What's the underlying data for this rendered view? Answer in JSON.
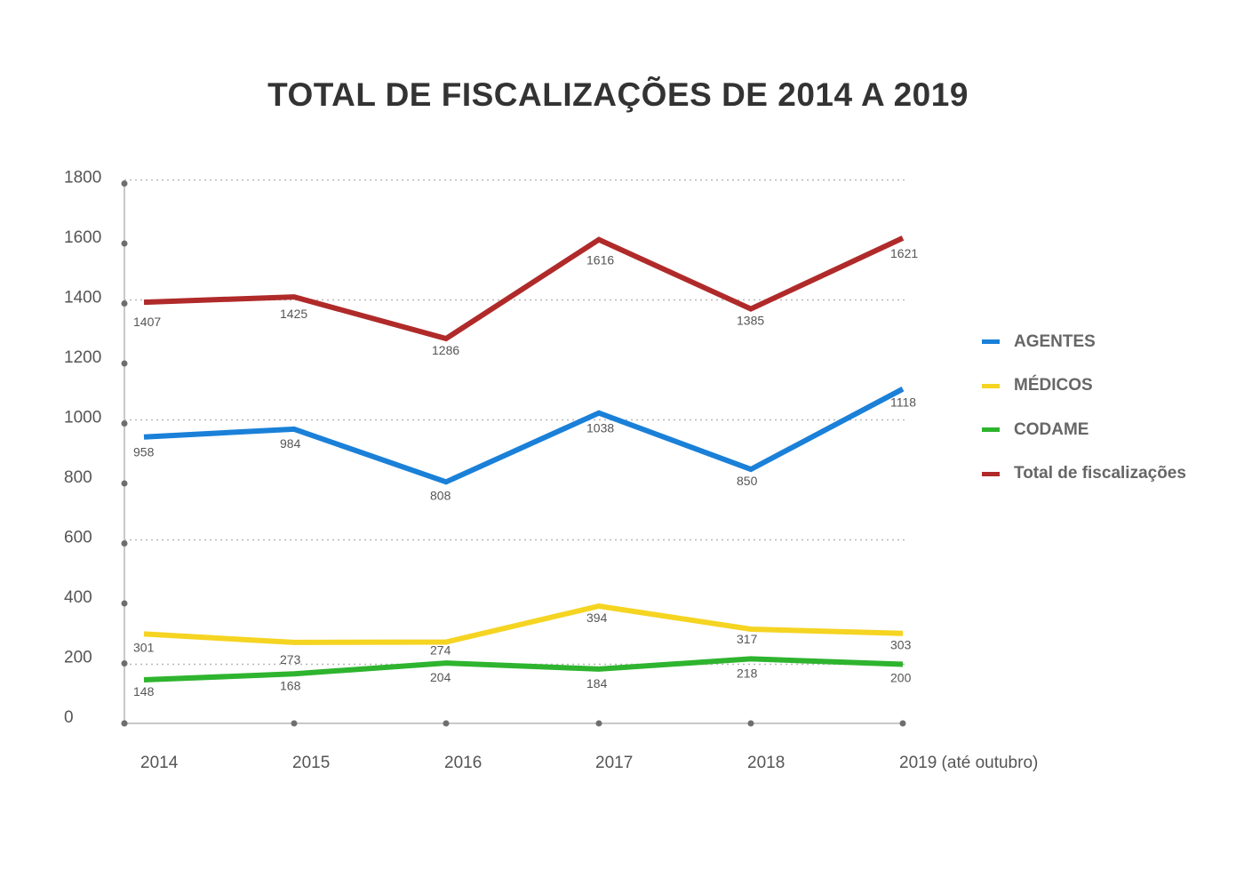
{
  "chart_data": {
    "type": "line",
    "title": "TOTAL DE FISCALIZAÇÕES DE 2014 A 2019",
    "categories": [
      "2014",
      "2015",
      "2016",
      "2017",
      "2018",
      "2019 (até outubro)"
    ],
    "ylim": [
      0,
      1800
    ],
    "yticks": [
      "0",
      "200",
      "400",
      "600",
      "800",
      "1000",
      "1200",
      "1400",
      "1600",
      "1800"
    ],
    "grid": "dotted horizontal",
    "legend_position": "right",
    "series": [
      {
        "name": "AGENTES",
        "color": "#1a80d8",
        "values": [
          958,
          984,
          808,
          1038,
          850,
          1118
        ]
      },
      {
        "name": "MÉDICOS",
        "color": "#f5d422",
        "values": [
          301,
          273,
          274,
          394,
          317,
          303
        ]
      },
      {
        "name": "CODAME",
        "color": "#2eb42e",
        "values": [
          148,
          168,
          204,
          184,
          218,
          200
        ]
      },
      {
        "name": "Total de fiscalizações",
        "color": "#b02a2a",
        "values": [
          1407,
          1425,
          1286,
          1616,
          1385,
          1621
        ]
      }
    ]
  }
}
